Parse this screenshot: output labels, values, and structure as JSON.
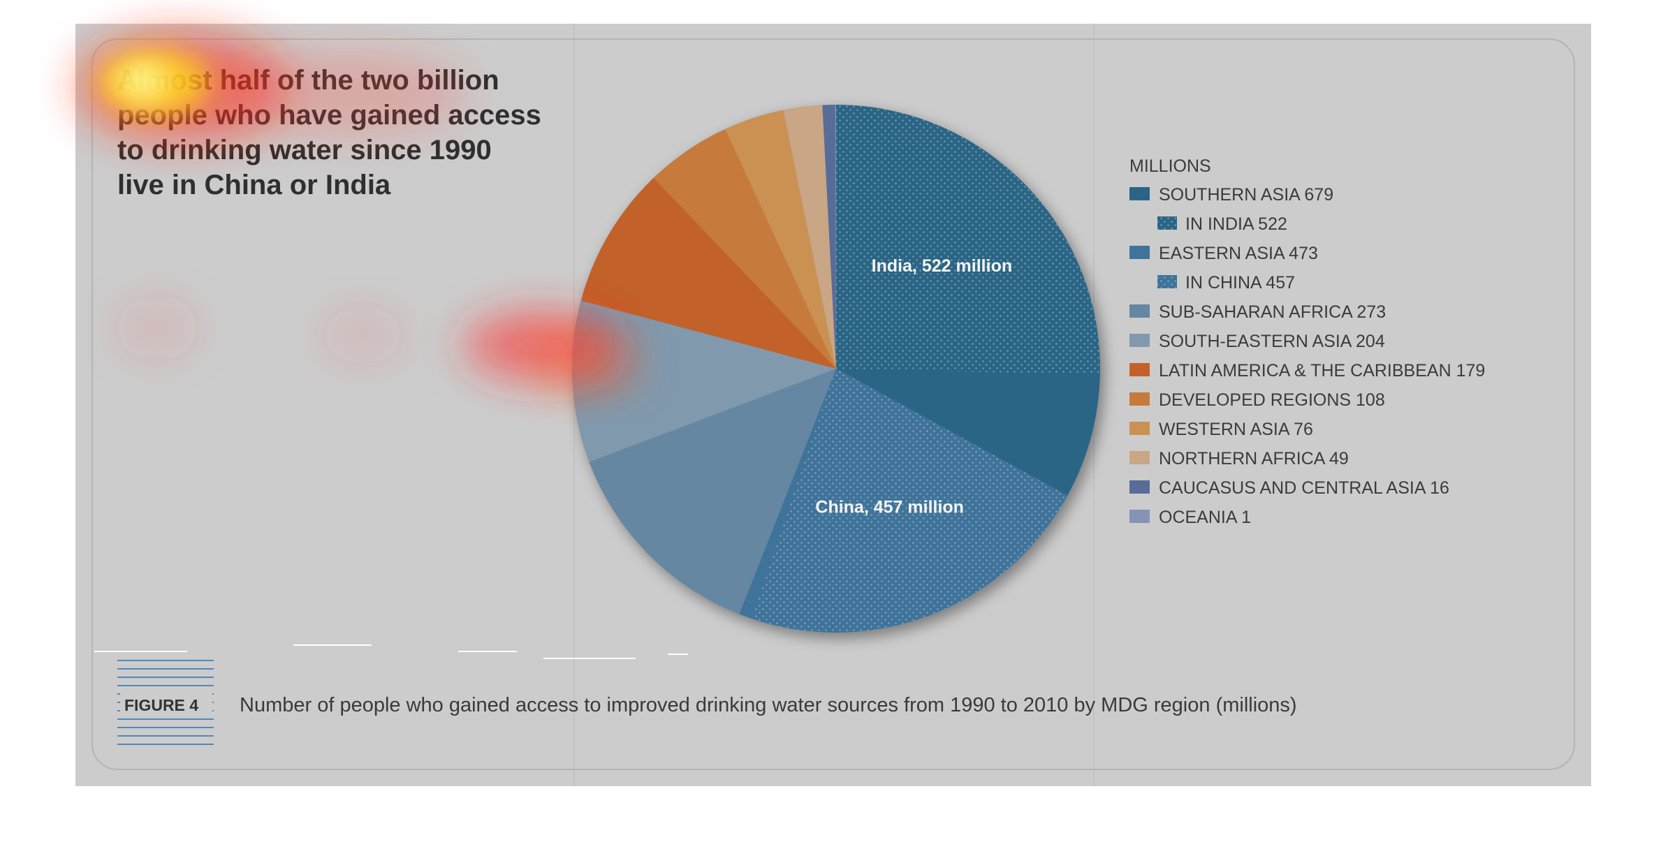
{
  "headline": {
    "lines": [
      "Almost half of the two billion",
      "people who have gained access",
      "to drinking water since 1990",
      "live in China or India"
    ]
  },
  "figure": {
    "label": "FIGURE 4",
    "caption": "Number of people who gained access to improved drinking water sources from 1990 to 2010 by MDG region (millions)"
  },
  "colors": {
    "background": "#cccccc",
    "southern_asia": "#2b6585",
    "eastern_asia": "#3f739a",
    "sub_saharan_africa": "#6587a2",
    "south_eastern_asia": "#8199ad",
    "latin_america": "#c2612a",
    "developed_regions": "#c67b3c",
    "western_asia": "#cb9152",
    "northern_africa": "#c9a685",
    "caucasus": "#576c99",
    "oceania": "#8693b4"
  },
  "chart_data": {
    "type": "pie",
    "unit_label": "MILLIONS",
    "slices": [
      {
        "key": "southern_asia",
        "legend": "SOUTHERN ASIA 679",
        "value": 679,
        "sub_value": 522,
        "sub_legend": "IN INDIA 522",
        "sub_label": "India, 522 million"
      },
      {
        "key": "eastern_asia",
        "legend": "EASTERN ASIA 473",
        "value": 473,
        "sub_value": 457,
        "sub_legend": "IN CHINA 457",
        "sub_label": "China, 457 million"
      },
      {
        "key": "sub_saharan_africa",
        "legend": "SUB-SAHARAN AFRICA 273",
        "value": 273
      },
      {
        "key": "south_eastern_asia",
        "legend": "SOUTH-EASTERN ASIA 204",
        "value": 204
      },
      {
        "key": "latin_america",
        "legend": "LATIN AMERICA & THE CARIBBEAN 179",
        "value": 179
      },
      {
        "key": "developed_regions",
        "legend": "DEVELOPED REGIONS 108",
        "value": 108
      },
      {
        "key": "western_asia",
        "legend": "WESTERN ASIA 76",
        "value": 76
      },
      {
        "key": "northern_africa",
        "legend": "NORTHERN AFRICA 49",
        "value": 49
      },
      {
        "key": "caucasus",
        "legend": "CAUCASUS AND CENTRAL ASIA 16",
        "value": 16
      },
      {
        "key": "oceania",
        "legend": "OCEANIA 1",
        "value": 1
      }
    ]
  }
}
